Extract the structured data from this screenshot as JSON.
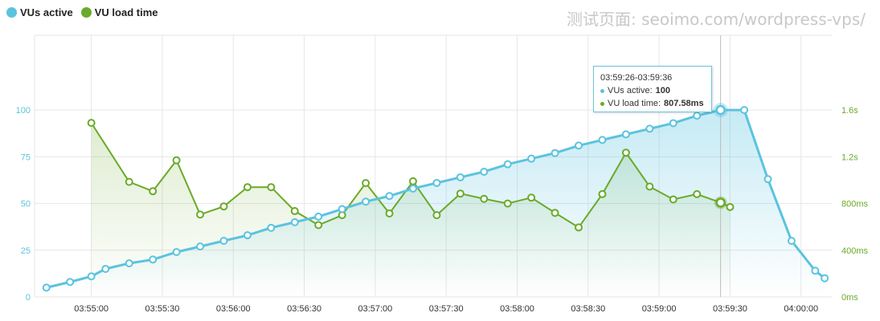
{
  "legend": {
    "vus_label": "VUs active",
    "load_label": "VU load time"
  },
  "watermark": "测试页面: seoimo.com/wordpress-vps/",
  "colors": {
    "vus": "#5bc3df",
    "load": "#6aaa2a",
    "grid": "#e6e6e6"
  },
  "tooltip": {
    "range": "03:59:26-03:59:36",
    "vus_label": "VUs active: ",
    "vus_value": "100",
    "load_label": "VU load time: ",
    "load_value": "807.58ms"
  },
  "chart_data": {
    "type": "line",
    "x_ticks": [
      "03:55:00",
      "03:55:30",
      "03:56:00",
      "03:56:30",
      "03:57:00",
      "03:57:30",
      "03:58:00",
      "03:58:30",
      "03:59:00",
      "03:59:30",
      "04:00:00"
    ],
    "y_left": {
      "ticks": [
        "0",
        "25",
        "50",
        "75",
        "100"
      ],
      "range": [
        0,
        140
      ]
    },
    "y_right": {
      "ticks": [
        "0ms",
        "400ms",
        "800ms",
        "1.2s",
        "1.6s"
      ],
      "range": [
        0,
        2240
      ]
    },
    "series": [
      {
        "name": "VUs active",
        "axis": "left",
        "x": [
          "03:54:41",
          "03:54:51",
          "03:55:00",
          "03:55:06",
          "03:55:16",
          "03:55:26",
          "03:55:36",
          "03:55:46",
          "03:55:56",
          "03:56:06",
          "03:56:16",
          "03:56:26",
          "03:56:36",
          "03:56:46",
          "03:56:56",
          "03:57:06",
          "03:57:16",
          "03:57:26",
          "03:57:36",
          "03:57:46",
          "03:57:56",
          "03:58:06",
          "03:58:16",
          "03:58:26",
          "03:58:36",
          "03:58:46",
          "03:58:56",
          "03:59:06",
          "03:59:16",
          "03:59:26",
          "03:59:36",
          "03:59:46",
          "03:59:56",
          "04:00:06",
          "04:00:10"
        ],
        "values": [
          5,
          8,
          11,
          15,
          18,
          20,
          24,
          27,
          30,
          33,
          37,
          40,
          43,
          47,
          51,
          54,
          58,
          61,
          64,
          67,
          71,
          74,
          77,
          81,
          84,
          87,
          90,
          93,
          97,
          100,
          100,
          63,
          30,
          14,
          10
        ]
      },
      {
        "name": "VU load time",
        "axis": "right",
        "x": [
          "03:55:00",
          "03:55:16",
          "03:55:26",
          "03:55:36",
          "03:55:46",
          "03:55:56",
          "03:56:06",
          "03:56:16",
          "03:56:26",
          "03:56:36",
          "03:56:46",
          "03:56:56",
          "03:57:06",
          "03:57:16",
          "03:57:26",
          "03:57:36",
          "03:57:46",
          "03:57:56",
          "03:58:06",
          "03:58:16",
          "03:58:26",
          "03:58:36",
          "03:58:46",
          "03:58:56",
          "03:59:06",
          "03:59:16",
          "03:59:26",
          "03:59:30"
        ],
        "values": [
          1490,
          985,
          905,
          1170,
          705,
          775,
          940,
          940,
          735,
          615,
          700,
          975,
          715,
          990,
          700,
          885,
          840,
          800,
          850,
          720,
          595,
          880,
          1235,
          945,
          835,
          880,
          807.58,
          770
        ]
      }
    ],
    "highlight": {
      "x": "03:59:26",
      "vus": 100,
      "load_ms": 807.58
    },
    "grid": true,
    "legend_position": "top-left"
  }
}
